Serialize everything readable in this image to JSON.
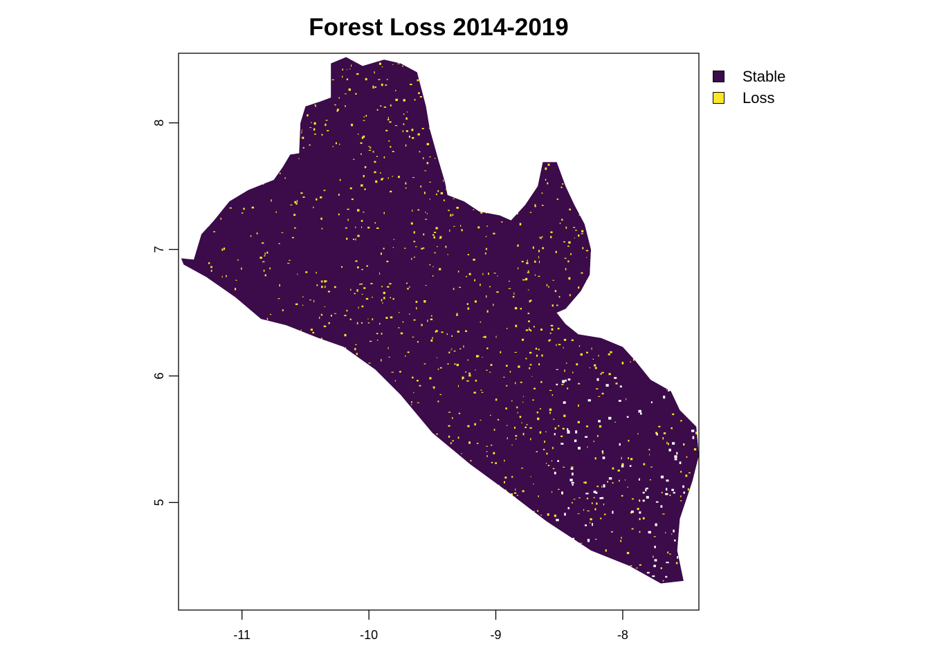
{
  "title": "Forest Loss 2014-2019",
  "legend": {
    "items": [
      {
        "label": "Stable",
        "color": "#3b0b4a"
      },
      {
        "label": "Loss",
        "color": "#fde725"
      }
    ]
  },
  "axes": {
    "x_ticks": [
      "-11",
      "-10",
      "-9",
      "-8"
    ],
    "y_ticks": [
      "5",
      "6",
      "7",
      "8"
    ]
  },
  "chart_data": {
    "type": "heatmap",
    "title": "Forest Loss 2014-2019",
    "xlabel": "",
    "ylabel": "",
    "xlim": [
      -11.5,
      -7.4
    ],
    "ylim": [
      4.15,
      8.55
    ],
    "x_ticks": [
      -11,
      -10,
      -9,
      -8
    ],
    "y_ticks": [
      5,
      6,
      7,
      8
    ],
    "classes": [
      {
        "name": "Stable",
        "color": "#3b0b4a"
      },
      {
        "name": "Loss",
        "color": "#fde725"
      }
    ],
    "no_data_color": "#ffffff",
    "outline_lonlat": [
      [
        -11.48,
        6.93
      ],
      [
        -11.38,
        6.92
      ],
      [
        -11.32,
        7.12
      ],
      [
        -11.22,
        7.23
      ],
      [
        -11.1,
        7.38
      ],
      [
        -10.95,
        7.47
      ],
      [
        -10.75,
        7.55
      ],
      [
        -10.68,
        7.65
      ],
      [
        -10.62,
        7.75
      ],
      [
        -10.55,
        7.76
      ],
      [
        -10.54,
        8.0
      ],
      [
        -10.5,
        8.13
      ],
      [
        -10.38,
        8.17
      ],
      [
        -10.3,
        8.2
      ],
      [
        -10.3,
        8.47
      ],
      [
        -10.18,
        8.52
      ],
      [
        -10.05,
        8.45
      ],
      [
        -9.88,
        8.5
      ],
      [
        -9.75,
        8.47
      ],
      [
        -9.62,
        8.4
      ],
      [
        -9.55,
        8.13
      ],
      [
        -9.52,
        7.95
      ],
      [
        -9.45,
        7.7
      ],
      [
        -9.4,
        7.53
      ],
      [
        -9.38,
        7.43
      ],
      [
        -9.25,
        7.38
      ],
      [
        -9.13,
        7.3
      ],
      [
        -8.97,
        7.27
      ],
      [
        -8.88,
        7.23
      ],
      [
        -8.77,
        7.35
      ],
      [
        -8.67,
        7.5
      ],
      [
        -8.63,
        7.69
      ],
      [
        -8.52,
        7.69
      ],
      [
        -8.45,
        7.5
      ],
      [
        -8.38,
        7.35
      ],
      [
        -8.3,
        7.2
      ],
      [
        -8.25,
        7.0
      ],
      [
        -8.26,
        6.8
      ],
      [
        -8.33,
        6.67
      ],
      [
        -8.45,
        6.53
      ],
      [
        -8.52,
        6.5
      ],
      [
        -8.45,
        6.41
      ],
      [
        -8.35,
        6.33
      ],
      [
        -8.17,
        6.3
      ],
      [
        -8.0,
        6.23
      ],
      [
        -7.9,
        6.12
      ],
      [
        -7.78,
        5.97
      ],
      [
        -7.62,
        5.88
      ],
      [
        -7.55,
        5.73
      ],
      [
        -7.42,
        5.6
      ],
      [
        -7.4,
        5.37
      ],
      [
        -7.45,
        5.17
      ],
      [
        -7.55,
        4.87
      ],
      [
        -7.57,
        4.62
      ],
      [
        -7.52,
        4.38
      ],
      [
        -7.7,
        4.36
      ],
      [
        -7.95,
        4.5
      ],
      [
        -8.25,
        4.62
      ],
      [
        -8.6,
        4.85
      ],
      [
        -8.9,
        5.08
      ],
      [
        -9.2,
        5.3
      ],
      [
        -9.5,
        5.55
      ],
      [
        -9.75,
        5.85
      ],
      [
        -9.95,
        6.05
      ],
      [
        -10.2,
        6.23
      ],
      [
        -10.4,
        6.3
      ],
      [
        -10.65,
        6.4
      ],
      [
        -10.85,
        6.45
      ],
      [
        -11.05,
        6.62
      ],
      [
        -11.28,
        6.78
      ],
      [
        -11.46,
        6.88
      ]
    ]
  }
}
